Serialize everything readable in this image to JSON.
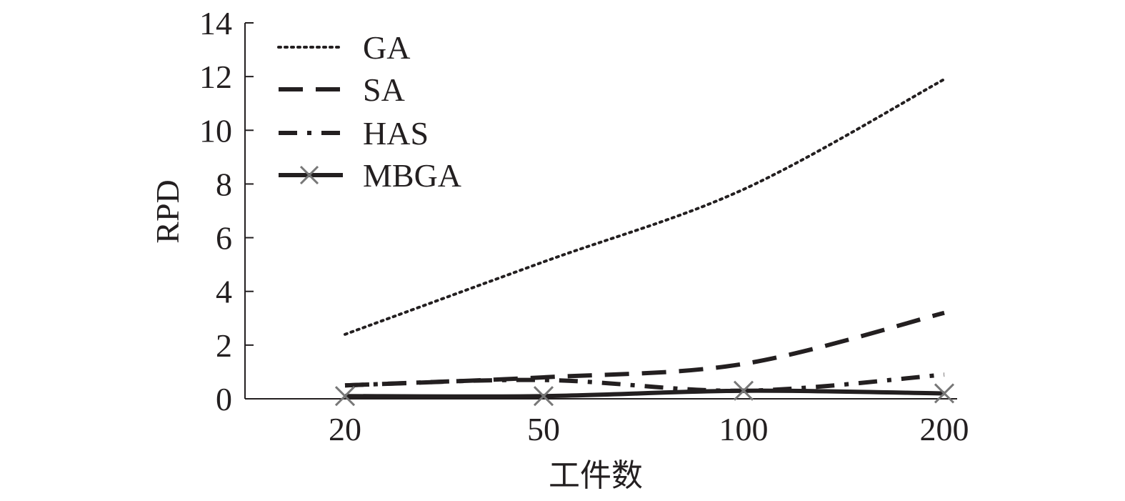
{
  "chart_data": {
    "type": "line",
    "title": "",
    "xlabel": "工件数",
    "ylabel": "RPD",
    "categories": [
      "20",
      "50",
      "100",
      "200"
    ],
    "ylim": [
      0,
      14
    ],
    "yticks": [
      0,
      2,
      4,
      6,
      8,
      10,
      12,
      14
    ],
    "legend_position": "top-left",
    "grid": false,
    "series": [
      {
        "name": "GA",
        "style": "dotted",
        "values": [
          2.4,
          5.1,
          7.8,
          11.9
        ]
      },
      {
        "name": "SA",
        "style": "dashed",
        "values": [
          0.5,
          0.8,
          1.3,
          3.2
        ]
      },
      {
        "name": "HAS",
        "style": "dash-dot",
        "values": [
          0.5,
          0.7,
          0.3,
          0.9
        ]
      },
      {
        "name": "MBGA",
        "style": "solid-x",
        "values": [
          0.1,
          0.1,
          0.3,
          0.2
        ]
      }
    ],
    "colors": {
      "line": "#231f20",
      "marker": "#777777"
    }
  }
}
